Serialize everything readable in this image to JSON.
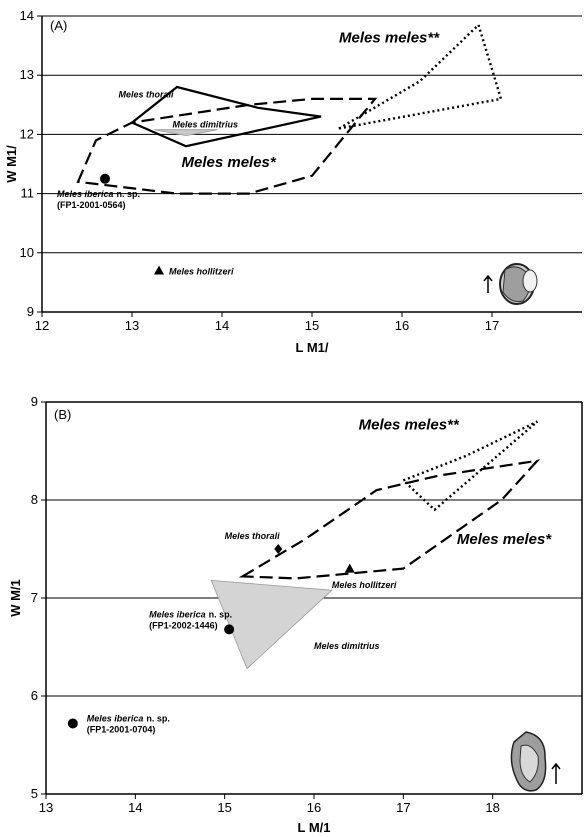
{
  "chart_data": [
    {
      "type": "scatter",
      "panel_label": "(A)",
      "xlabel": "L M1/",
      "ylabel": "W M1/",
      "xlim": [
        12,
        18
      ],
      "ylim": [
        9,
        14
      ],
      "xticks": [
        "12",
        "13",
        "14",
        "15",
        "16",
        "17"
      ],
      "yticks": [
        "9",
        "10",
        "11",
        "12",
        "13",
        "14"
      ],
      "grid": "horizontal",
      "regions": [
        {
          "name": "Meles meles*",
          "style": "dashed",
          "fill": "none",
          "points": [
            [
              12.4,
              11.2
            ],
            [
              12.6,
              11.9
            ],
            [
              13.0,
              12.2
            ],
            [
              14.3,
              12.5
            ],
            [
              15.0,
              12.6
            ],
            [
              15.7,
              12.6
            ],
            [
              15.0,
              11.3
            ],
            [
              14.3,
              11.0
            ],
            [
              13.5,
              11.0
            ],
            [
              12.4,
              11.2
            ]
          ]
        },
        {
          "name": "Meles meles**",
          "style": "dotted",
          "fill": "none",
          "points": [
            [
              15.3,
              12.1
            ],
            [
              16.2,
              12.9
            ],
            [
              16.85,
              13.85
            ],
            [
              17.1,
              12.6
            ],
            [
              15.3,
              12.1
            ]
          ]
        },
        {
          "name": "Meles thorali",
          "style": "solid",
          "fill": "none",
          "points": [
            [
              13.0,
              12.2
            ],
            [
              13.5,
              12.8
            ],
            [
              14.4,
              12.45
            ],
            [
              15.1,
              12.3
            ],
            [
              13.6,
              11.8
            ],
            [
              13.0,
              12.2
            ]
          ]
        },
        {
          "name": "Meles dimitrius",
          "style": "filled",
          "fill": "#c8c8c8",
          "points": [
            [
              13.25,
              12.08
            ],
            [
              13.95,
              12.08
            ],
            [
              13.6,
              11.98
            ],
            [
              13.25,
              12.08
            ]
          ]
        }
      ],
      "points": [
        {
          "name": "Meles iberica",
          "suffix": "n. sp.",
          "specimen": "(FP1-2001-0564)",
          "marker": "circle",
          "x": 12.7,
          "y": 11.25
        },
        {
          "name": "Meles hollitzeri",
          "marker": "triangle",
          "x": 13.3,
          "y": 9.7
        }
      ],
      "annotations": [
        {
          "text": "Meles meles**",
          "x": 15.3,
          "y": 13.55,
          "size": "large"
        },
        {
          "text": "Meles thorali",
          "x": 12.85,
          "y": 12.62,
          "size": "small"
        },
        {
          "text": "Meles dimitrius",
          "x": 13.45,
          "y": 12.12,
          "size": "small"
        },
        {
          "text": "Meles meles*",
          "x": 13.55,
          "y": 11.45,
          "size": "large"
        }
      ]
    },
    {
      "type": "scatter",
      "panel_label": "(B)",
      "xlabel": "L M/1",
      "ylabel": "W M/1",
      "xlim": [
        13,
        19
      ],
      "ylim": [
        5,
        9
      ],
      "xticks": [
        "13",
        "14",
        "15",
        "16",
        "17",
        "18"
      ],
      "yticks": [
        "5",
        "6",
        "7",
        "8",
        "9"
      ],
      "grid": "horizontal",
      "regions": [
        {
          "name": "Meles meles*",
          "style": "dashed",
          "fill": "none",
          "points": [
            [
              15.2,
              7.22
            ],
            [
              15.9,
              7.6
            ],
            [
              16.7,
              8.1
            ],
            [
              17.4,
              8.25
            ],
            [
              18.5,
              8.4
            ],
            [
              18.1,
              8.0
            ],
            [
              17.0,
              7.3
            ],
            [
              15.8,
              7.2
            ],
            [
              15.2,
              7.22
            ]
          ]
        },
        {
          "name": "Meles meles**",
          "style": "dotted",
          "fill": "none",
          "points": [
            [
              17.0,
              8.2
            ],
            [
              17.7,
              8.45
            ],
            [
              18.5,
              8.8
            ],
            [
              17.35,
              7.9
            ],
            [
              17.0,
              8.2
            ]
          ]
        },
        {
          "name": "Meles dimitrius",
          "style": "filled",
          "fill": "#d4d4d4",
          "points": [
            [
              14.85,
              7.18
            ],
            [
              16.2,
              7.08
            ],
            [
              15.25,
              6.28
            ],
            [
              14.85,
              7.18
            ]
          ]
        }
      ],
      "points": [
        {
          "name": "Meles thorali",
          "marker": "diamond",
          "x": 15.6,
          "y": 7.5
        },
        {
          "name": "Meles hollitzeri",
          "marker": "triangle",
          "x": 16.4,
          "y": 7.3
        },
        {
          "name": "Meles iberica",
          "suffix": "n. sp.",
          "specimen": "(FP1-2002-1446)",
          "marker": "circle",
          "x": 15.05,
          "y": 6.68
        },
        {
          "name": "Meles iberica",
          "suffix": "n. sp.",
          "specimen": "(FP1-2001-0704)",
          "marker": "circle",
          "x": 13.3,
          "y": 5.72
        }
      ],
      "annotations": [
        {
          "text": "Meles meles**",
          "x": 16.5,
          "y": 8.72,
          "size": "large"
        },
        {
          "text": "Meles thorali",
          "x": 15.0,
          "y": 7.6,
          "size": "small"
        },
        {
          "text": "Meles meles*",
          "x": 17.6,
          "y": 7.55,
          "size": "large"
        },
        {
          "text": "Meles hollitzeri",
          "x": 16.2,
          "y": 7.1,
          "size": "small"
        },
        {
          "text": "Meles dimitrius",
          "x": 16.0,
          "y": 6.48,
          "size": "small"
        }
      ]
    }
  ]
}
